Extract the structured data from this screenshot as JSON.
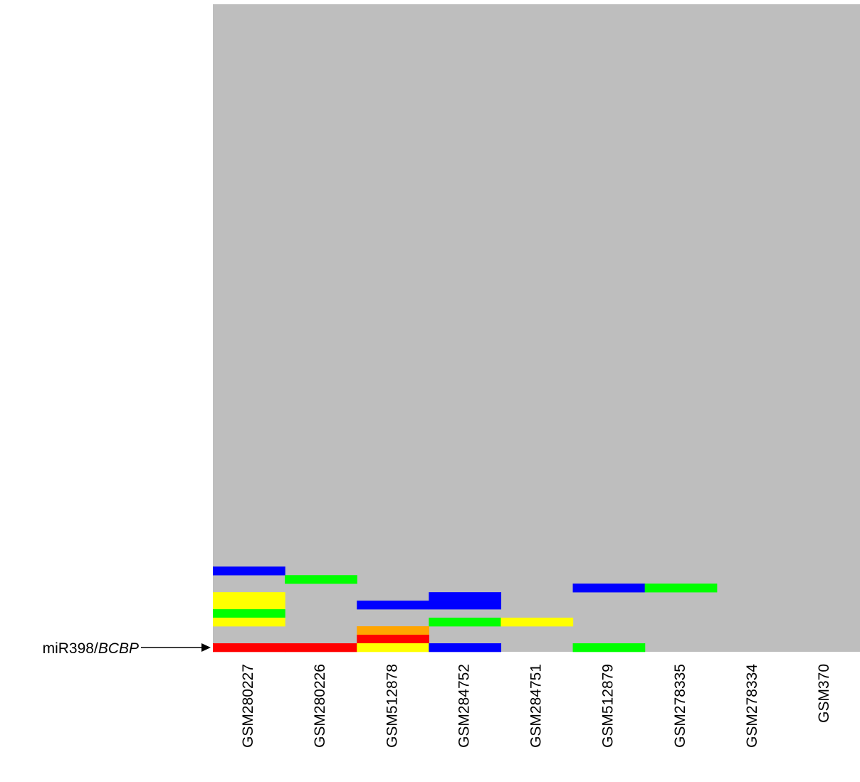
{
  "chart_data": {
    "type": "heatmap",
    "columns": [
      "GSM280227",
      "GSM280226",
      "GSM512878",
      "GSM284752",
      "GSM284751",
      "GSM512879",
      "GSM278335",
      "GSM278334",
      "GSM370"
    ],
    "row_count": 76,
    "background_color": "#bebebe",
    "colors": {
      "red": "#ff0000",
      "orange": "#ffa500",
      "yellow": "#ffff00",
      "green": "#00ff00",
      "blue": "#0000ff"
    },
    "cells": [
      {
        "col": 0,
        "row": 66,
        "value": "blue"
      },
      {
        "col": 1,
        "row": 67,
        "value": "green"
      },
      {
        "col": 5,
        "row": 68,
        "value": "blue"
      },
      {
        "col": 6,
        "row": 68,
        "value": "green"
      },
      {
        "col": 0,
        "row": 69,
        "value": "yellow"
      },
      {
        "col": 3,
        "row": 69,
        "value": "blue"
      },
      {
        "col": 0,
        "row": 70,
        "value": "yellow"
      },
      {
        "col": 2,
        "row": 70,
        "value": "blue"
      },
      {
        "col": 3,
        "row": 70,
        "value": "blue"
      },
      {
        "col": 0,
        "row": 71,
        "value": "green"
      },
      {
        "col": 0,
        "row": 72,
        "value": "yellow"
      },
      {
        "col": 3,
        "row": 72,
        "value": "green"
      },
      {
        "col": 4,
        "row": 72,
        "value": "yellow"
      },
      {
        "col": 2,
        "row": 73,
        "value": "orange"
      },
      {
        "col": 2,
        "row": 74,
        "value": "red"
      },
      {
        "col": 0,
        "row": 75,
        "value": "red"
      },
      {
        "col": 1,
        "row": 75,
        "value": "red"
      },
      {
        "col": 2,
        "row": 75,
        "value": "yellow"
      },
      {
        "col": 3,
        "row": 75,
        "value": "blue"
      },
      {
        "col": 5,
        "row": 75,
        "value": "green"
      }
    ],
    "annotation": {
      "label_prefix": "miR398/",
      "label_gene": "BCBP",
      "row": 75
    }
  }
}
